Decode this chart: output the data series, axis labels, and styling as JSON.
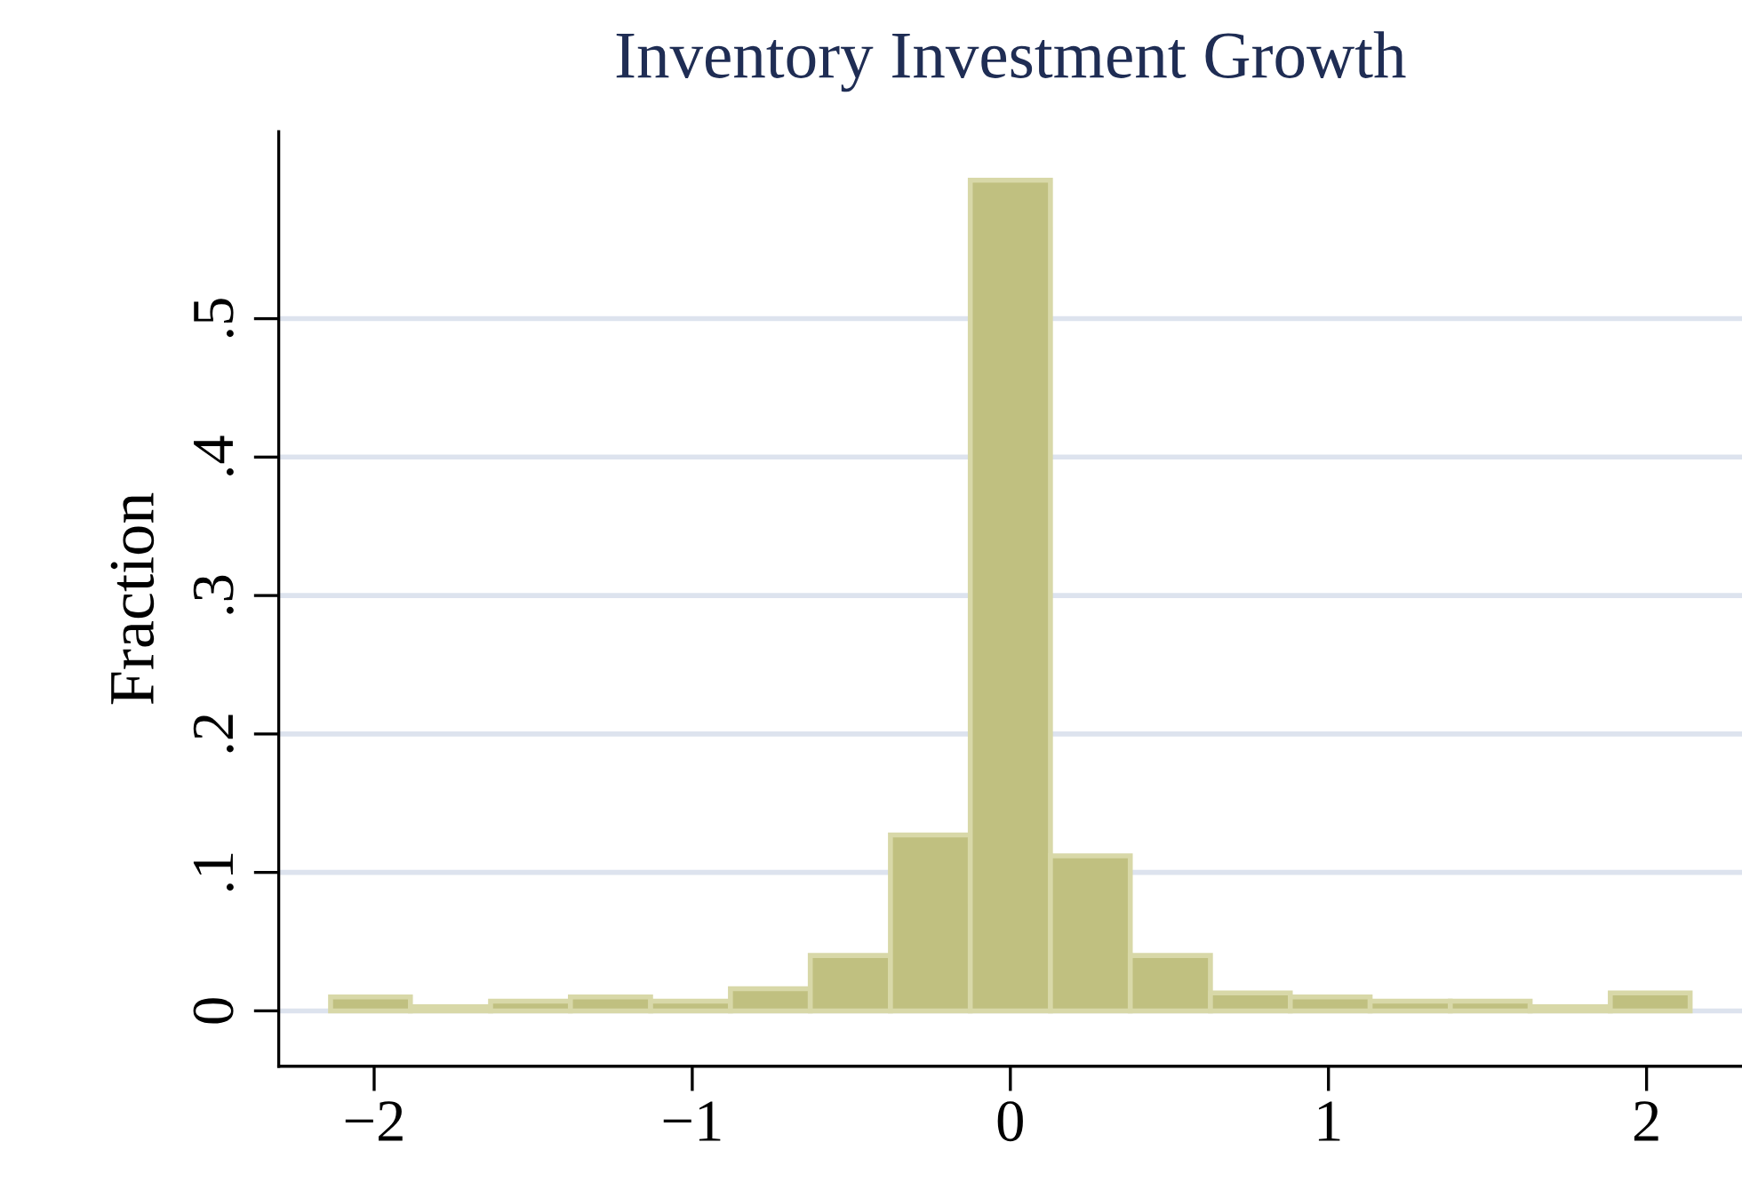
{
  "chart_data": {
    "type": "histogram",
    "title": "Inventory Investment Growth",
    "ylabel": "Fraction",
    "bins": [
      -2.137,
      -1.886,
      -1.634,
      -1.383,
      -1.131,
      -0.88,
      -0.629,
      -0.377,
      -0.126,
      0.126,
      0.377,
      0.629,
      0.88,
      1.131,
      1.383,
      1.634,
      1.886,
      2.137
    ],
    "values": [
      0.01,
      0.003,
      0.007,
      0.01,
      0.007,
      0.016,
      0.04,
      0.127,
      0.6,
      0.112,
      0.04,
      0.013,
      0.01,
      0.007,
      0.007,
      0.003,
      0.013
    ],
    "color": "#c0c080",
    "xlim": [
      -2.3,
      2.3
    ],
    "ylim": [
      -0.04,
      0.635
    ],
    "xticks": [
      {
        "value": -2,
        "label": "−2"
      },
      {
        "value": -1,
        "label": "−1"
      },
      0,
      1,
      2
    ],
    "yticks": [
      0,
      {
        "value": 0.1,
        "label": ".1"
      },
      {
        "value": 0.2,
        "label": ".2"
      },
      {
        "value": 0.3,
        "label": ".3"
      },
      {
        "value": 0.4,
        "label": ".4"
      },
      {
        "value": 0.5,
        "label": ".5"
      }
    ],
    "grid": "y"
  }
}
